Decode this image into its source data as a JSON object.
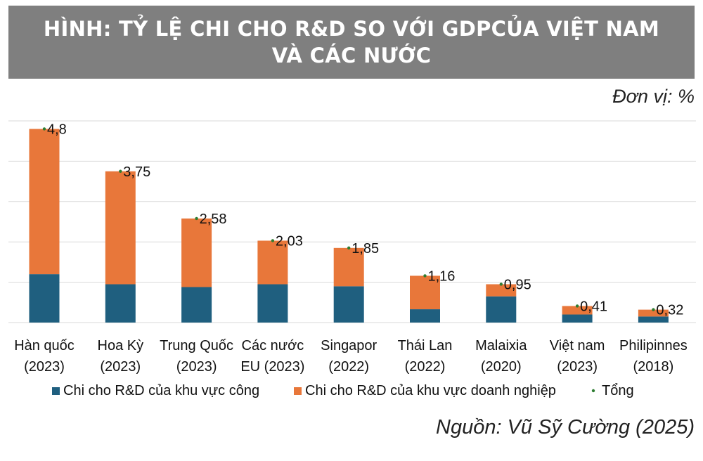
{
  "title": {
    "line1": "HÌNH: TỶ LỆ CHI CHO R&D SO VỚI GDPCỦA VIỆT NAM",
    "line2": "VÀ CÁC NƯỚC"
  },
  "unit_label": "Đơn vị: %",
  "source_label": "Nguồn: Vũ Sỹ Cường (2025)",
  "colors": {
    "public": "#1f5f7f",
    "business": "#e8773a",
    "total_marker": "#2e7d32",
    "grid": "#d9d9d9",
    "title_band": "#7f7f7f"
  },
  "chart_data": {
    "type": "bar",
    "stacked": true,
    "categories": [
      [
        "Hàn quốc",
        "(2023)"
      ],
      [
        "Hoa Kỳ",
        "(2023)"
      ],
      [
        "Trung Quốc",
        "(2023)"
      ],
      [
        "Các nước",
        "EU (2023)"
      ],
      [
        "Singapor",
        "(2022)"
      ],
      [
        "Thái Lan",
        "(2022)"
      ],
      [
        "Malaixia",
        "(2020)"
      ],
      [
        "Việt nam",
        "(2023)"
      ],
      [
        "Philipinnes",
        "(2018)"
      ]
    ],
    "series": [
      {
        "name": "Chi cho R&D của khu vực công",
        "values": [
          1.2,
          0.95,
          0.88,
          0.95,
          0.9,
          0.33,
          0.65,
          0.2,
          0.15
        ]
      },
      {
        "name": "Chi cho R&D của khu vực doanh nghiệp",
        "values": [
          3.6,
          2.8,
          1.7,
          1.08,
          0.95,
          0.83,
          0.3,
          0.21,
          0.17
        ]
      }
    ],
    "totals": {
      "name": "Tổng",
      "values": [
        4.8,
        3.75,
        2.58,
        2.03,
        1.85,
        1.16,
        0.95,
        0.41,
        0.32
      ],
      "labels": [
        "4,8",
        "3,75",
        "2,58",
        "2,03",
        "1,85",
        "1,16",
        "0,95",
        "0,41",
        "0,32"
      ]
    },
    "ylim": [
      0,
      5
    ],
    "gridlines": [
      0,
      1,
      2,
      3,
      4,
      5
    ],
    "grid": true,
    "y_tick_labels_shown": false,
    "legend_position": "bottom"
  }
}
